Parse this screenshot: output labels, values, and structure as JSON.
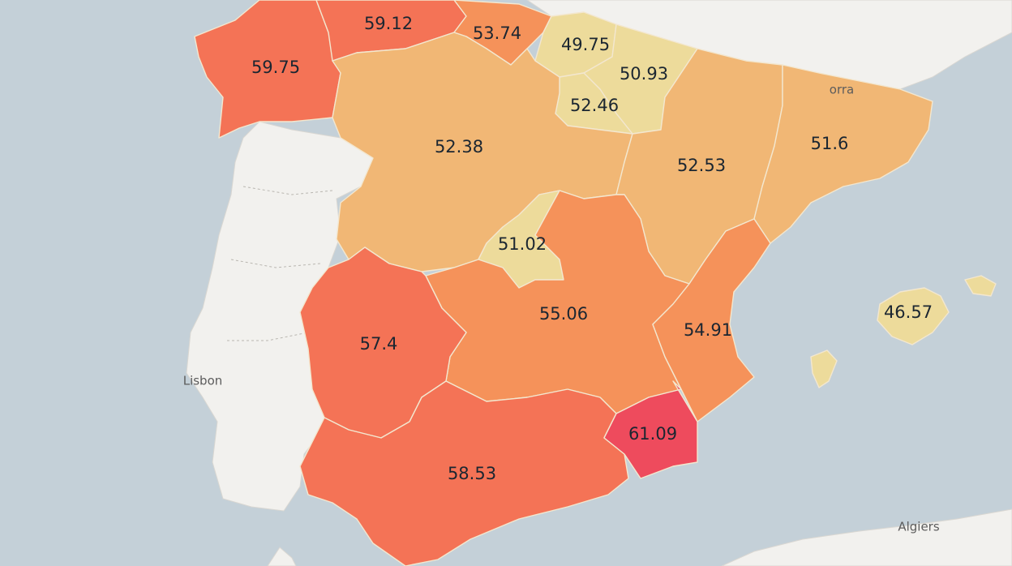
{
  "map": {
    "colors": {
      "sea": "#c4d0d8",
      "land": "#f2f1ee",
      "lowest": "#eddb9b",
      "low": "#f1b775",
      "mid": "#f5925a",
      "high": "#f47356",
      "highest": "#ee4b5d"
    },
    "places": [
      {
        "id": "lisbon",
        "name": "Lisbon"
      },
      {
        "id": "algiers",
        "name": "Algiers"
      },
      {
        "id": "andorra",
        "name": "orra"
      }
    ],
    "regions": [
      {
        "id": "galicia",
        "value": "59.75",
        "color": "#f47356"
      },
      {
        "id": "asturias",
        "value": "59.12",
        "color": "#f47356"
      },
      {
        "id": "cantabria",
        "value": "53.74",
        "color": "#f5925a"
      },
      {
        "id": "basque",
        "value": "49.75",
        "color": "#eddb9b"
      },
      {
        "id": "navarra",
        "value": "50.93",
        "color": "#eddb9b"
      },
      {
        "id": "rioja",
        "value": "52.46",
        "color": "#eddb9b"
      },
      {
        "id": "castilla-leon",
        "value": "52.38",
        "color": "#f1b775"
      },
      {
        "id": "aragon",
        "value": "52.53",
        "color": "#f1b775"
      },
      {
        "id": "catalonia",
        "value": "51.6",
        "color": "#f1b775"
      },
      {
        "id": "madrid",
        "value": "51.02",
        "color": "#eddb9b"
      },
      {
        "id": "castilla-la-mancha",
        "value": "55.06",
        "color": "#f5925a"
      },
      {
        "id": "valencia",
        "value": "54.91",
        "color": "#f5925a"
      },
      {
        "id": "extremadura",
        "value": "57.4",
        "color": "#f47356"
      },
      {
        "id": "andalusia",
        "value": "58.53",
        "color": "#f47356"
      },
      {
        "id": "murcia",
        "value": "61.09",
        "color": "#ee4b5d"
      },
      {
        "id": "balearic",
        "value": "46.57",
        "color": "#eddb9b"
      }
    ]
  }
}
